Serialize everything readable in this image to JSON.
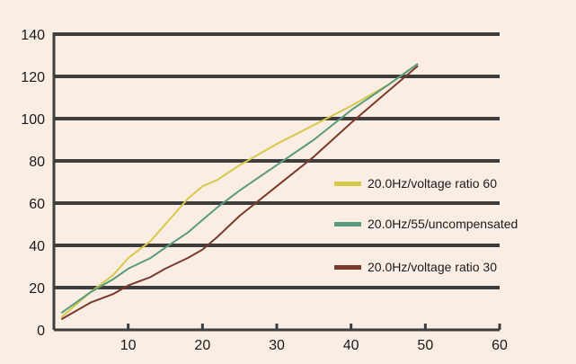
{
  "chart_data": {
    "type": "line",
    "title": "",
    "xlabel": "",
    "ylabel": "",
    "xlim": [
      0,
      60
    ],
    "ylim": [
      0,
      140
    ],
    "x_ticks": [
      10,
      20,
      30,
      40,
      50,
      60
    ],
    "y_ticks": [
      0,
      20,
      40,
      60,
      80,
      100,
      120,
      140
    ],
    "grid": "horizontal",
    "legend_position": "center-right",
    "background_color": "#faeee4",
    "grid_color": "#3d3d3d",
    "series": [
      {
        "name": "20.0Hz/voltage ratio 60",
        "color": "#d8c84a",
        "points": [
          [
            1,
            6
          ],
          [
            5,
            18
          ],
          [
            8,
            26
          ],
          [
            10,
            34
          ],
          [
            13,
            42
          ],
          [
            15,
            50
          ],
          [
            18,
            62
          ],
          [
            20,
            68
          ],
          [
            22,
            71
          ],
          [
            25,
            78
          ],
          [
            30,
            88
          ],
          [
            35,
            97
          ],
          [
            40,
            106
          ],
          [
            45,
            116
          ],
          [
            49,
            126
          ]
        ]
      },
      {
        "name": "20.0Hz/55/uncompensated",
        "color": "#5a9a7c",
        "points": [
          [
            1,
            8
          ],
          [
            5,
            18
          ],
          [
            8,
            24
          ],
          [
            10,
            29
          ],
          [
            13,
            34
          ],
          [
            15,
            39
          ],
          [
            18,
            46
          ],
          [
            20,
            52
          ],
          [
            22,
            58
          ],
          [
            25,
            66
          ],
          [
            30,
            78
          ],
          [
            35,
            90
          ],
          [
            40,
            104
          ],
          [
            45,
            116
          ],
          [
            49,
            126
          ]
        ]
      },
      {
        "name": "20.0Hz/voltage ratio 30",
        "color": "#7a3a2c",
        "points": [
          [
            1,
            5
          ],
          [
            5,
            13
          ],
          [
            8,
            17
          ],
          [
            10,
            21
          ],
          [
            13,
            25
          ],
          [
            15,
            29
          ],
          [
            18,
            34
          ],
          [
            20,
            38
          ],
          [
            22,
            44
          ],
          [
            25,
            54
          ],
          [
            30,
            68
          ],
          [
            35,
            82
          ],
          [
            40,
            98
          ],
          [
            45,
            113
          ],
          [
            49,
            125
          ]
        ]
      }
    ]
  }
}
